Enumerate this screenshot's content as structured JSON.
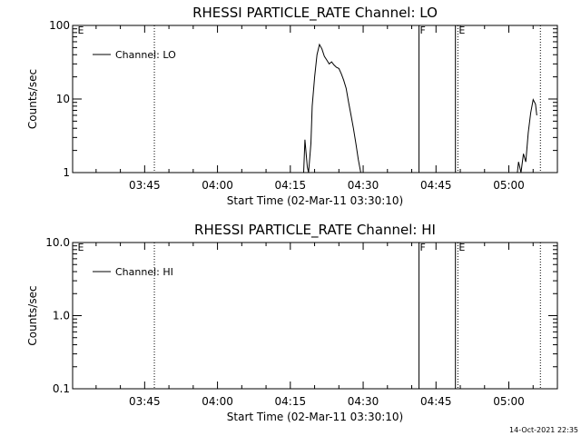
{
  "timestamp": "14-Oct-2021 22:35",
  "chart_data": [
    {
      "type": "line",
      "title": "RHESSI PARTICLE_RATE Channel: LO",
      "xlabel": "Start Time (02-Mar-11 03:30:10)",
      "ylabel": "Counts/sec",
      "yscale": "log",
      "ylim": [
        1,
        100
      ],
      "xlim": [
        "03:30:10",
        "05:10:00"
      ],
      "x_ticks": [
        "03:45",
        "04:00",
        "04:15",
        "04:30",
        "04:45",
        "05:00"
      ],
      "y_ticks": [
        "1",
        "10",
        "100"
      ],
      "legend": {
        "label": "Channel: LO",
        "position": "top-left"
      },
      "markers": [
        {
          "time": "03:31:00",
          "label": "E",
          "style": "none"
        },
        {
          "time": "03:47:00",
          "label": "",
          "style": "dotted"
        },
        {
          "time": "04:41:30",
          "label": "F",
          "style": "solid"
        },
        {
          "time": "04:49:00",
          "label": "",
          "style": "solid"
        },
        {
          "time": "04:49:30",
          "label": "E",
          "style": "dotted"
        },
        {
          "time": "05:06:30",
          "label": "",
          "style": "dotted"
        }
      ],
      "series": [
        {
          "name": "Channel: LO",
          "segments": [
            {
              "x": [
                "04:17:45",
                "04:18:00",
                "04:18:30",
                "04:18:45",
                "04:19:15",
                "04:19:30",
                "04:20:00",
                "04:20:30",
                "04:21:00",
                "04:21:30",
                "04:22:00",
                "04:22:30",
                "04:23:00",
                "04:23:30",
                "04:24:00",
                "04:24:30",
                "04:25:00",
                "04:25:30",
                "04:26:00",
                "04:26:30",
                "04:27:00",
                "04:27:30",
                "04:28:00",
                "04:28:30",
                "04:29:00",
                "04:29:30"
              ],
              "y": [
                1.0,
                2.8,
                1.2,
                1.0,
                2.5,
                8.0,
                20,
                40,
                55,
                48,
                38,
                34,
                30,
                32,
                29,
                27,
                26,
                22,
                18,
                14,
                9,
                6,
                4,
                2.5,
                1.5,
                1.0
              ]
            },
            {
              "x": [
                "05:01:45",
                "05:02:00",
                "05:02:30",
                "05:03:00",
                "05:03:30",
                "05:04:00",
                "05:04:30",
                "05:05:00",
                "05:05:30",
                "05:05:45"
              ],
              "y": [
                1.0,
                1.4,
                1.0,
                1.8,
                1.4,
                3.5,
                6.5,
                9.8,
                8.5,
                6.0
              ]
            }
          ]
        }
      ]
    },
    {
      "type": "line",
      "title": "RHESSI PARTICLE_RATE Channel: HI",
      "xlabel": "Start Time (02-Mar-11 03:30:10)",
      "ylabel": "Counts/sec",
      "yscale": "log",
      "ylim": [
        0.1,
        10
      ],
      "xlim": [
        "03:30:10",
        "05:10:00"
      ],
      "x_ticks": [
        "03:45",
        "04:00",
        "04:15",
        "04:30",
        "04:45",
        "05:00"
      ],
      "y_ticks": [
        "0.1",
        "1.0",
        "10.0"
      ],
      "legend": {
        "label": "Channel: HI",
        "position": "top-left"
      },
      "markers": [
        {
          "time": "03:31:00",
          "label": "E",
          "style": "none"
        },
        {
          "time": "03:47:00",
          "label": "",
          "style": "dotted"
        },
        {
          "time": "04:41:30",
          "label": "F",
          "style": "solid"
        },
        {
          "time": "04:49:00",
          "label": "",
          "style": "solid"
        },
        {
          "time": "04:49:30",
          "label": "E",
          "style": "dotted"
        },
        {
          "time": "05:06:30",
          "label": "",
          "style": "dotted"
        }
      ],
      "series": [
        {
          "name": "Channel: HI",
          "segments": []
        }
      ]
    }
  ]
}
